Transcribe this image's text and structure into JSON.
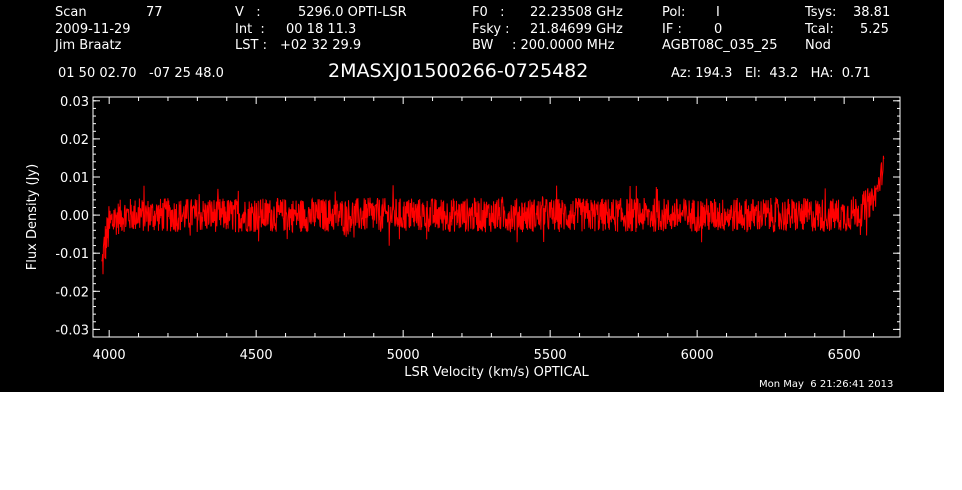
{
  "header": {
    "scan_label": "Scan",
    "scan_value": "77",
    "date": "2009-11-29",
    "observer": "Jim Braatz",
    "v_label": "V   :",
    "v_value": "5296.0 OPTI-LSR",
    "int_label": "Int  :",
    "int_value": "00 18 11.3",
    "lst_label": "LST :",
    "lst_value": "+02 32 29.9",
    "f0_label": "F0   :",
    "f0_value": "22.23508 GHz",
    "fsky_label": "Fsky :",
    "fsky_value": "21.84699 GHz",
    "bw_label": "BW",
    "bw_value": ": 200.0000 MHz",
    "pol_label": "Pol:",
    "pol_value": "I",
    "if_label": "IF :",
    "if_value": "0",
    "project": "AGBT08C_035_25",
    "tsys_label": "Tsys:",
    "tsys_value": "38.81",
    "tcal_label": "Tcal:",
    "tcal_value": "5.25",
    "mode": "Nod",
    "coords": "01 50 02.70   -07 25 48.0",
    "source": "2MASXJ01500266-0725482",
    "azelha": "Az: 194.3   El:  43.2   HA:  0.71",
    "timestamp": "Mon May  6 21:26:41 2013"
  },
  "chart_data": {
    "type": "line",
    "xlabel": "LSR Velocity (km/s) OPTICAL",
    "ylabel": "Flux Density (Jy)",
    "xlim": [
      3945,
      6690
    ],
    "ylim": [
      -0.032,
      0.031
    ],
    "xticks": [
      "4000",
      "4500",
      "5000",
      "5500",
      "6000",
      "6500"
    ],
    "yticks": [
      "0.03",
      "0.02",
      "0.01",
      "0.00",
      "-0.01",
      "-0.02",
      "-0.03"
    ],
    "series": [
      {
        "color": "#ff0000",
        "x": [
          3975,
          3985,
          4000,
          4020,
          4050,
          4100,
          4200,
          4300,
          4400,
          4500,
          4600,
          4700,
          4800,
          4900,
          5000,
          5100,
          5200,
          5300,
          5400,
          5500,
          5600,
          5700,
          5800,
          5900,
          6000,
          6100,
          6200,
          6300,
          6400,
          6500,
          6550,
          6590,
          6610,
          6625,
          6635
        ],
        "y": [
          -0.014,
          -0.008,
          -0.003,
          -0.001,
          0.0,
          0.0,
          0.0,
          0.0,
          0.0,
          0.0,
          0.0,
          0.0,
          0.0,
          0.0,
          0.0,
          0.0,
          0.0,
          0.0,
          0.0,
          0.0,
          0.0,
          0.0,
          0.0,
          0.0,
          0.0,
          0.0,
          0.0,
          0.0,
          0.0,
          0.0,
          0.001,
          0.003,
          0.006,
          0.01,
          0.014
        ]
      }
    ]
  }
}
